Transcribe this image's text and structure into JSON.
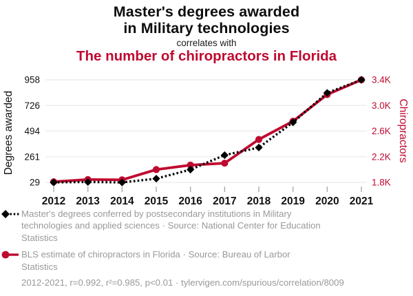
{
  "header": {
    "title": "Master's degrees awarded\nin Military technologies",
    "connector": "correlates with",
    "subtitle": "The number of chiropractors in Florida"
  },
  "colors": {
    "accent_red": "#bf0a30",
    "series_black": "#000000",
    "legend_gray": "#999999",
    "gridline": "#e9e9e9",
    "axis_tick": "#aaaaaa",
    "title_ink": "#0d0d0d"
  },
  "chart_data": {
    "type": "line",
    "x": [
      2012,
      2013,
      2014,
      2015,
      2016,
      2017,
      2018,
      2019,
      2020,
      2021
    ],
    "series": [
      {
        "name": "Master's degrees in Military technologies",
        "axis": "left",
        "color": "#000000",
        "line_style": "dotted",
        "marker": "diamond",
        "values": [
          29,
          33,
          29,
          63,
          145,
          276,
          345,
          573,
          840,
          958
        ]
      },
      {
        "name": "Chiropractors in Florida",
        "axis": "right",
        "color": "#bf0a30",
        "line_style": "solid",
        "marker": "circle",
        "values": [
          1810,
          1845,
          1840,
          2000,
          2070,
          2100,
          2470,
          2755,
          3170,
          3400
        ]
      }
    ],
    "left_axis": {
      "label": "Degrees awarded",
      "ticks": [
        958,
        726,
        494,
        261,
        29
      ],
      "range": [
        29,
        958
      ]
    },
    "right_axis": {
      "label": "Chiropractors",
      "tick_labels": [
        "3.4K",
        "3.0K",
        "2.6K",
        "2.2K",
        "1.8K"
      ],
      "tick_values": [
        3400,
        3000,
        2600,
        2200,
        1800
      ],
      "range": [
        1800,
        3400
      ]
    },
    "grid": "horizontal-only",
    "legend_position": "bottom-left"
  },
  "legend": {
    "items": [
      {
        "series": "masters-degrees",
        "label": "Master's degrees conferred by postsecondary institutions in Military\ntechnologies and applied sciences · Source: National Center for Education\nStatistics"
      },
      {
        "series": "chiropractors-florida",
        "label": "BLS estimate of chiropractors in Florida · Source: Bureau of Larbor\nStatistics"
      }
    ],
    "footnote": "2012-2021, r=0.992, r²=0.985, p<0.01 · tylervigen.com/spurious/correlation/8009"
  }
}
